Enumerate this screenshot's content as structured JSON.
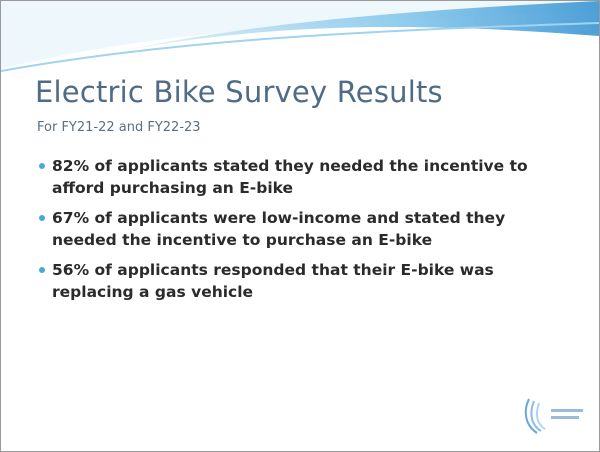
{
  "title": "Electric Bike Survey Results",
  "subtitle": "For FY21-22 and FY22-23",
  "bullets": [
    "82% of applicants stated they needed the incentive to afford purchasing an E-bike",
    "67% of applicants were low-income and stated they needed the incentive to purchase an E-bike",
    "56% of applicants responded that their E-bike was replacing a gas vehicle"
  ]
}
